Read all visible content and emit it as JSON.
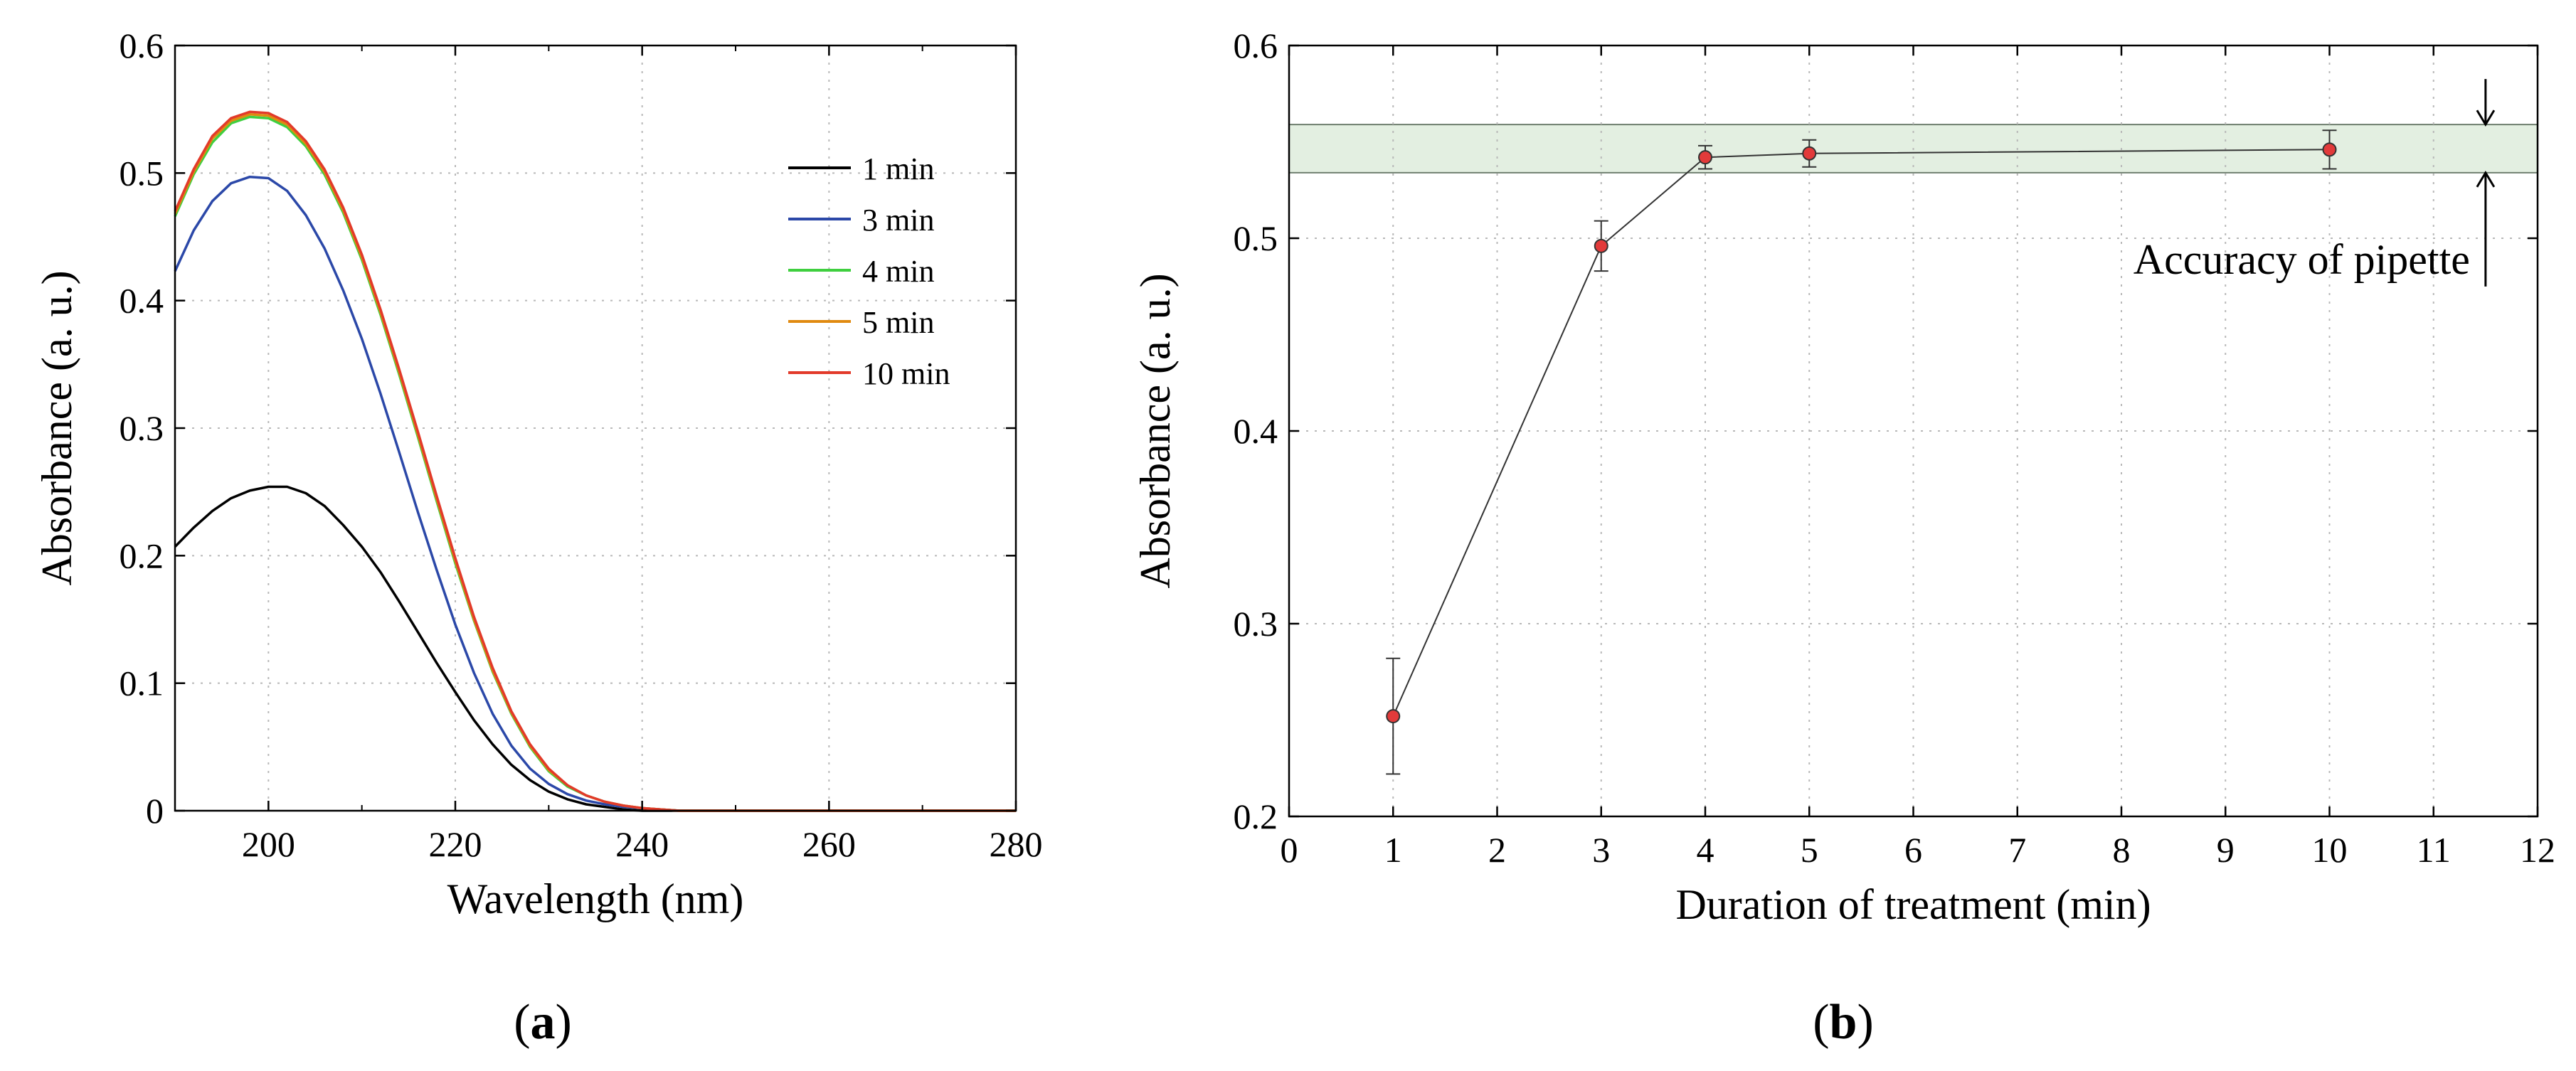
{
  "panel_labels": {
    "a": "a",
    "b": "b"
  },
  "chart_data": [
    {
      "id": "a",
      "type": "line",
      "title": "",
      "xlabel": "Wavelength (nm)",
      "ylabel": "Absorbance (a. u.)",
      "xlim": [
        190,
        280
      ],
      "ylim": [
        0,
        0.6
      ],
      "xticks": [
        200,
        220,
        240,
        260,
        280
      ],
      "xtick_labels": [
        "200",
        "220",
        "240",
        "260",
        "280"
      ],
      "yticks": [
        0,
        0.1,
        0.2,
        0.3,
        0.4,
        0.5,
        0.6
      ],
      "ytick_labels": [
        "0",
        "0.1",
        "0.2",
        "0.3",
        "0.4",
        "0.5",
        "0.6"
      ],
      "grid": true,
      "legend_position": "top-right",
      "x": [
        190,
        192,
        194,
        196,
        198,
        200,
        202,
        204,
        206,
        208,
        210,
        212,
        214,
        216,
        218,
        220,
        222,
        224,
        226,
        228,
        230,
        232,
        234,
        236,
        238,
        240,
        242,
        244,
        246,
        248,
        250,
        255,
        260,
        270,
        280
      ],
      "series": [
        {
          "name": "1 min",
          "color": "#000000",
          "values": [
            0.207,
            0.222,
            0.235,
            0.245,
            0.251,
            0.254,
            0.254,
            0.249,
            0.239,
            0.224,
            0.207,
            0.187,
            0.164,
            0.14,
            0.116,
            0.093,
            0.071,
            0.052,
            0.036,
            0.024,
            0.015,
            0.009,
            0.005,
            0.003,
            0.001,
            0.0,
            0.0,
            0.0,
            0.0,
            0.0,
            0.0,
            0.0,
            0.0,
            0.0,
            0.0
          ]
        },
        {
          "name": "3 min",
          "color": "#2b48a8",
          "values": [
            0.423,
            0.455,
            0.478,
            0.492,
            0.497,
            0.496,
            0.486,
            0.467,
            0.441,
            0.408,
            0.37,
            0.327,
            0.281,
            0.234,
            0.189,
            0.146,
            0.108,
            0.076,
            0.051,
            0.033,
            0.021,
            0.013,
            0.008,
            0.005,
            0.003,
            0.002,
            0.001,
            0.0,
            0.0,
            0.0,
            0.0,
            0.0,
            0.0,
            0.0,
            0.0
          ]
        },
        {
          "name": "4 min",
          "color": "#3fcf3f",
          "values": [
            0.466,
            0.499,
            0.524,
            0.539,
            0.544,
            0.543,
            0.536,
            0.521,
            0.499,
            0.469,
            0.432,
            0.389,
            0.342,
            0.293,
            0.243,
            0.194,
            0.149,
            0.109,
            0.076,
            0.05,
            0.031,
            0.019,
            0.012,
            0.007,
            0.004,
            0.002,
            0.001,
            0.0,
            0.0,
            0.0,
            0.0,
            0.0,
            0.0,
            0.0,
            0.0
          ]
        },
        {
          "name": "5 min",
          "color": "#e08a10",
          "values": [
            0.468,
            0.501,
            0.527,
            0.541,
            0.546,
            0.545,
            0.538,
            0.523,
            0.501,
            0.471,
            0.434,
            0.391,
            0.344,
            0.295,
            0.245,
            0.196,
            0.15,
            0.11,
            0.077,
            0.051,
            0.032,
            0.02,
            0.012,
            0.007,
            0.004,
            0.002,
            0.001,
            0.0,
            0.0,
            0.0,
            0.0,
            0.0,
            0.0,
            0.0,
            0.0
          ]
        },
        {
          "name": "10 min",
          "color": "#e23a2a",
          "values": [
            0.47,
            0.503,
            0.529,
            0.543,
            0.548,
            0.547,
            0.54,
            0.525,
            0.503,
            0.473,
            0.436,
            0.393,
            0.346,
            0.297,
            0.247,
            0.198,
            0.152,
            0.112,
            0.078,
            0.052,
            0.033,
            0.02,
            0.012,
            0.007,
            0.004,
            0.002,
            0.001,
            0.0,
            0.0,
            0.0,
            0.0,
            0.0,
            0.0,
            0.0,
            0.0
          ]
        }
      ]
    },
    {
      "id": "b",
      "type": "scatter",
      "title": "",
      "xlabel": "Duration of treatment (min)",
      "ylabel": "Absorbance (a. u.)",
      "xlim": [
        0,
        12
      ],
      "ylim": [
        0.2,
        0.6
      ],
      "xticks": [
        0,
        1,
        2,
        3,
        4,
        5,
        6,
        7,
        8,
        9,
        10,
        11,
        12
      ],
      "xtick_labels": [
        "0",
        "1",
        "2",
        "3",
        "4",
        "5",
        "6",
        "7",
        "8",
        "9",
        "10",
        "11",
        "12"
      ],
      "yticks": [
        0.2,
        0.3,
        0.4,
        0.5,
        0.6
      ],
      "ytick_labels": [
        "0.2",
        "0.3",
        "0.4",
        "0.5",
        "0.6"
      ],
      "grid": true,
      "series": [
        {
          "name": "Absorbance",
          "color": "#e23a3a",
          "x": [
            1,
            3,
            4,
            5,
            10
          ],
          "values": [
            0.252,
            0.496,
            0.542,
            0.544,
            0.546
          ],
          "error": [
            0.03,
            0.013,
            0.006,
            0.007,
            0.01
          ]
        }
      ],
      "band": {
        "ymin": 0.534,
        "ymax": 0.559,
        "color": "#e3efe1"
      },
      "annotation": {
        "text": "Accuracy of pipette",
        "x": 11.5
      }
    }
  ]
}
